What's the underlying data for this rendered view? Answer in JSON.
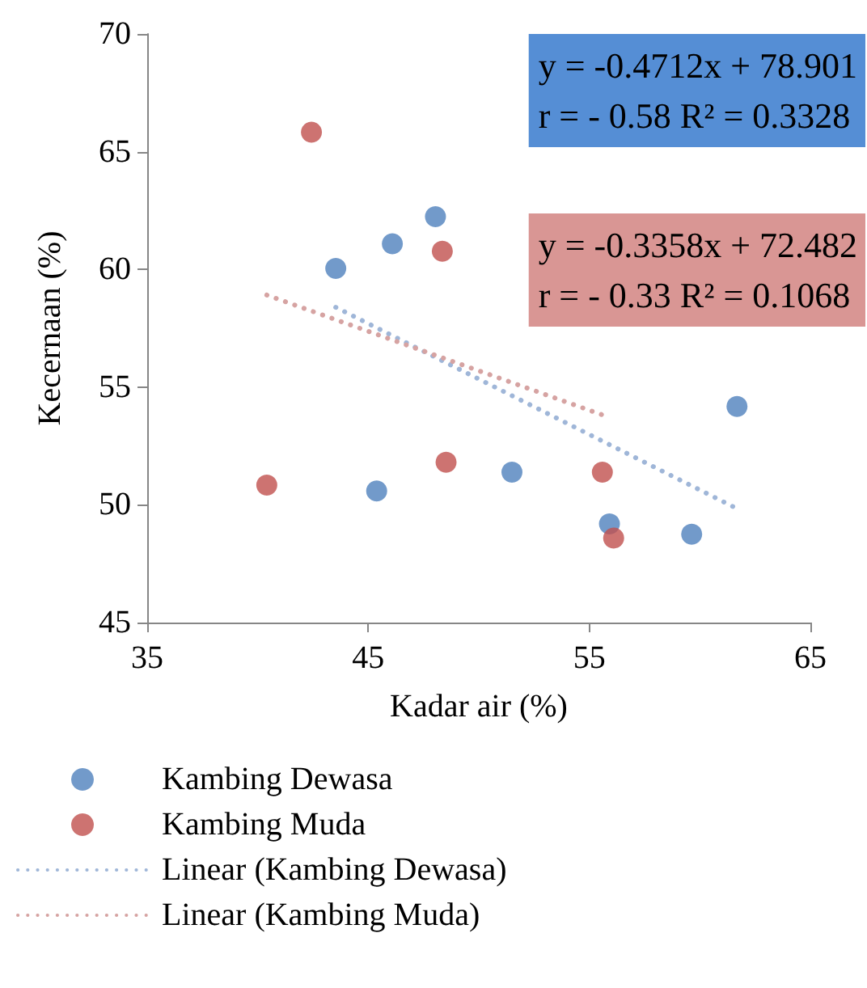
{
  "chart_data": {
    "type": "scatter",
    "xlabel": "Kadar air (%)",
    "ylabel": "Kecernaan (%)",
    "xlim": [
      35,
      65
    ],
    "xticks": [
      35,
      45,
      55,
      65
    ],
    "ylim": [
      45,
      70
    ],
    "yticks": [
      45,
      50,
      55,
      60,
      65,
      70
    ],
    "grid": false,
    "legend": "bottom",
    "marker": "circle",
    "series": [
      {
        "name": "Kambing Dewasa",
        "color": "#4f81bd",
        "x": [
          43.53,
          46.09,
          48.04,
          45.38,
          51.5,
          55.91,
          59.63,
          61.68
        ],
        "values": [
          60.04,
          61.09,
          62.24,
          50.59,
          51.39,
          49.19,
          48.75,
          54.18
        ]
      },
      {
        "name": "Kambing Muda",
        "color": "#c0504d",
        "x": [
          42.43,
          48.35,
          40.41,
          48.52,
          55.59,
          56.1
        ],
        "values": [
          65.83,
          60.77,
          50.84,
          51.81,
          51.39,
          48.59
        ]
      },
      {
        "name": "Linear (Kambing Dewasa)",
        "type": "line",
        "marker": "none",
        "line_style": "dotted",
        "color": "#9fb6d8",
        "x": [
          43.53,
          61.68
        ],
        "values": [
          58.39,
          49.84
        ]
      },
      {
        "name": "Linear (Kambing Muda)",
        "type": "line",
        "marker": "none",
        "line_style": "dotted",
        "color": "#d6a3a2",
        "x": [
          40.41,
          55.59
        ],
        "values": [
          58.91,
          53.82
        ]
      }
    ],
    "annotations": [
      "y = -0.4712x + 78.901\nr = - 0.58 R² = 0.3328",
      "y = -0.3358x + 72.482\nr = - 0.33 R² = 0.1068"
    ]
  }
}
